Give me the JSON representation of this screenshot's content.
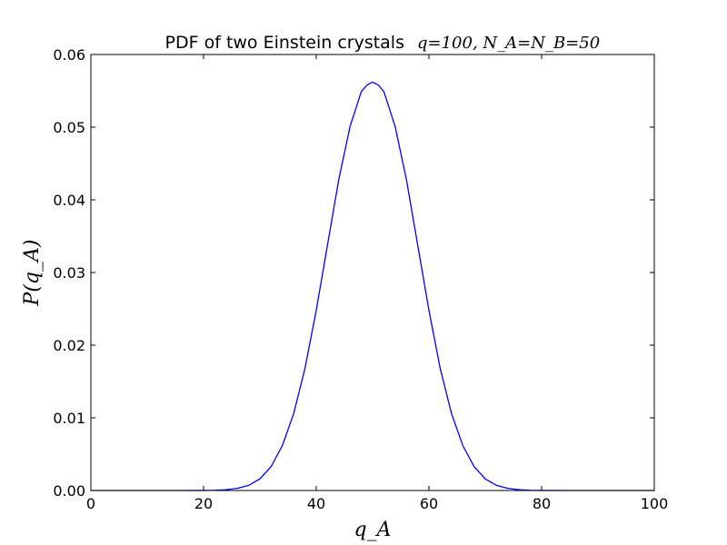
{
  "chart_data": {
    "type": "line",
    "title": "PDF of two Einstein crystals",
    "subtitle": "q=100, N_A=N_B=50",
    "xlabel": "q_A",
    "ylabel": "P(q_A)",
    "xlim": [
      0,
      100
    ],
    "ylim": [
      0,
      0.06
    ],
    "xticks": [
      "0",
      "20",
      "40",
      "60",
      "80",
      "100"
    ],
    "yticks": [
      "0.00",
      "0.01",
      "0.02",
      "0.03",
      "0.04",
      "0.05",
      "0.06"
    ],
    "grid": false,
    "series": [
      {
        "color": "#0000ff",
        "x": [
          0,
          5,
          10,
          15,
          20,
          22,
          24,
          26,
          28,
          30,
          32,
          34,
          36,
          38,
          40,
          42,
          44,
          46,
          48,
          49,
          50,
          51,
          52,
          54,
          56,
          58,
          60,
          62,
          64,
          66,
          68,
          70,
          72,
          74,
          76,
          78,
          80,
          85,
          90,
          95,
          100
        ],
        "y": [
          0,
          0,
          0,
          0,
          1e-05,
          3e-05,
          0.0001,
          0.0003,
          0.0007,
          0.0016,
          0.0033,
          0.0062,
          0.0106,
          0.0168,
          0.0248,
          0.0338,
          0.0428,
          0.0501,
          0.0549,
          0.0558,
          0.0562,
          0.0558,
          0.0549,
          0.0501,
          0.0428,
          0.0338,
          0.0248,
          0.0168,
          0.0106,
          0.0062,
          0.0033,
          0.0016,
          0.0007,
          0.0003,
          0.0001,
          3e-05,
          1e-05,
          0,
          0,
          0,
          0
        ]
      }
    ]
  }
}
